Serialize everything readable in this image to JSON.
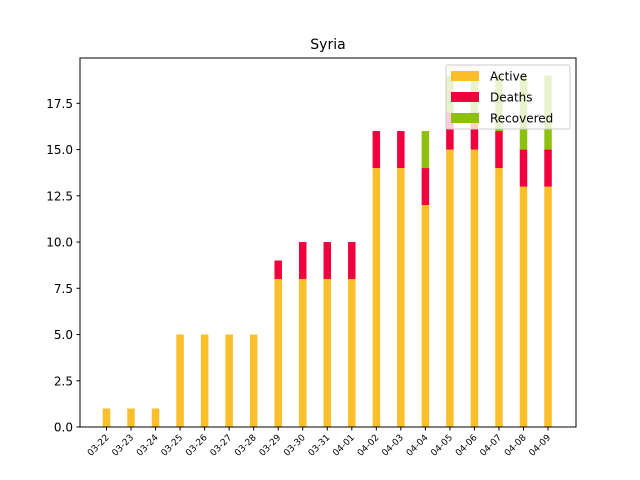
{
  "chart_data": {
    "type": "bar",
    "stacked": true,
    "title": "Syria",
    "xlabel": "",
    "ylabel": "",
    "categories": [
      "03-22",
      "03-23",
      "03-24",
      "03-25",
      "03-26",
      "03-27",
      "03-28",
      "03-29",
      "03-30",
      "03-31",
      "04-01",
      "04-02",
      "04-03",
      "04-04",
      "04-05",
      "04-06",
      "04-07",
      "04-08",
      "04-09"
    ],
    "series": [
      {
        "name": "Active",
        "color": "#fbbf2c",
        "values": [
          1,
          1,
          1,
          5,
          5,
          5,
          5,
          8,
          8,
          8,
          8,
          14,
          14,
          12,
          15,
          15,
          14,
          13,
          13
        ]
      },
      {
        "name": "Deaths",
        "color": "#f0003c",
        "values": [
          0,
          0,
          0,
          0,
          0,
          0,
          0,
          1,
          2,
          2,
          2,
          2,
          2,
          2,
          2,
          2,
          2,
          2,
          2
        ]
      },
      {
        "name": "Recovered",
        "color": "#8dc10d",
        "values": [
          0,
          0,
          0,
          0,
          0,
          0,
          0,
          0,
          0,
          0,
          0,
          0,
          0,
          2,
          2,
          2,
          3,
          4,
          4
        ]
      }
    ],
    "ylim": [
      0,
      19.95
    ],
    "yticks": [
      "0.0",
      "2.5",
      "5.0",
      "7.5",
      "10.0",
      "12.5",
      "15.0",
      "17.5"
    ],
    "ytick_values": [
      0,
      2.5,
      5,
      7.5,
      10,
      12.5,
      15,
      17.5
    ],
    "legend_position": "upper right",
    "grid": false
  }
}
